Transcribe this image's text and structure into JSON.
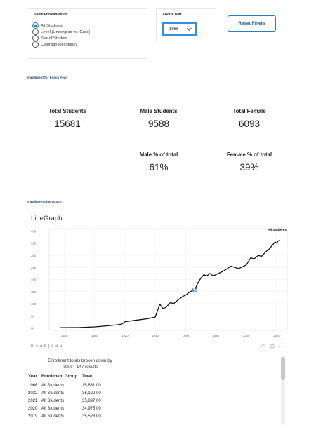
{
  "filters": {
    "title": "Show Enrollment of:",
    "options": [
      {
        "label": "All Students",
        "selected": true
      },
      {
        "label": "Level (Undergrad vs. Grad)",
        "selected": false
      },
      {
        "label": "Sex of Student",
        "selected": false
      },
      {
        "label": "Colorado Residency",
        "selected": false
      }
    ]
  },
  "focus_year": {
    "title": "Focus Year",
    "value": "1966"
  },
  "reset_button": {
    "label": "Reset Filters"
  },
  "enrollment_focus": {
    "title": "Enrollment for Focus Year",
    "total_students": {
      "label": "Total Students",
      "value": "15681"
    },
    "male_students": {
      "label": "Male Students",
      "value": "9588"
    },
    "total_female": {
      "label": "Total Female",
      "value": "6093"
    },
    "male_pct": {
      "label": "Male % of total",
      "value": "61%"
    },
    "female_pct": {
      "label": "Female % of total",
      "value": "39%"
    }
  },
  "line_graph_section": {
    "title": "Enrollment Line Graph"
  },
  "chart_data": {
    "type": "line",
    "title": "LineGraph",
    "xlabel": "",
    "ylabel": "",
    "x_ticks": [
      1880,
      1900,
      1920,
      1940,
      1960,
      1980,
      2000,
      2020
    ],
    "y_ticks": [
      "0K",
      "5K",
      "10K",
      "15K",
      "20K",
      "25K",
      "30K",
      "35K",
      "40K"
    ],
    "xlim": [
      1870,
      2027
    ],
    "ylim": [
      -1000,
      41000
    ],
    "grid": true,
    "series": [
      {
        "name": "All Students",
        "color": "#111111",
        "x": [
          1877,
          1885,
          1890,
          1895,
          1900,
          1905,
          1910,
          1915,
          1918,
          1920,
          1925,
          1930,
          1935,
          1940,
          1943,
          1945,
          1947,
          1950,
          1952,
          1955,
          1958,
          1960,
          1963,
          1966,
          1968,
          1970,
          1972,
          1974,
          1976,
          1978,
          1980,
          1985,
          1990,
          1995,
          2000,
          2003,
          2005,
          2008,
          2010,
          2013,
          2015,
          2017,
          2019,
          2020,
          2021,
          2022
        ],
        "y": [
          100,
          150,
          200,
          300,
          450,
          700,
          1000,
          1300,
          1600,
          2600,
          3000,
          3400,
          3800,
          4500,
          9800,
          8000,
          8500,
          10500,
          10000,
          11500,
          13000,
          13500,
          15000,
          15681,
          18500,
          20500,
          22000,
          21500,
          22500,
          21500,
          22000,
          23500,
          25500,
          24500,
          26000,
          29000,
          28500,
          30000,
          29500,
          31500,
          32500,
          34000,
          35528,
          34975,
          35897,
          36122
        ]
      }
    ],
    "highlight": {
      "x": 1966,
      "y": 15681
    },
    "series_label": "All Students"
  },
  "toolbar": {
    "logo": "+ a b | e a u"
  },
  "table": {
    "caption_line1": "Enrollment totals broken down by",
    "caption_line2": "filters - 147 results",
    "headers": [
      "Year",
      "Enrollment Group",
      "Total"
    ],
    "rows": [
      [
        "1966",
        "All Students",
        "15,681.00"
      ],
      [
        "2022",
        "All Students",
        "36,122.00"
      ],
      [
        "2021",
        "All Students",
        "35,897.00"
      ],
      [
        "2020",
        "All Students",
        "34,975.00"
      ],
      [
        "2019",
        "All Students",
        "35,528.00"
      ]
    ]
  },
  "colors": {
    "accent": "#3a8fd9",
    "title_blue": "#214a72",
    "line": "#111111"
  }
}
